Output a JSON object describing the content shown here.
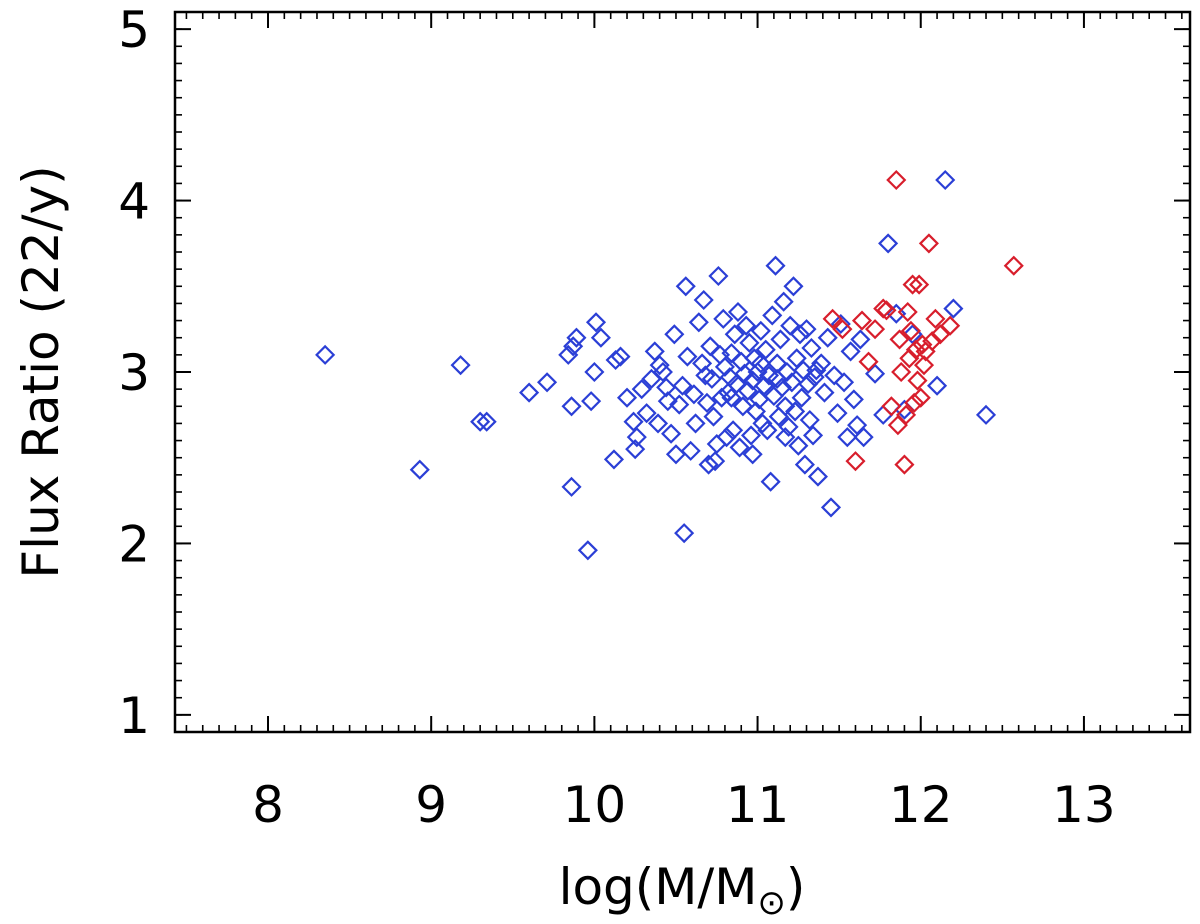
{
  "chart_data": {
    "type": "scatter",
    "title": "",
    "xlabel": "log(M/M",
    "xlabel_sub": "⊙",
    "xlabel_close": ")",
    "ylabel": "Flux Ratio (22/y)",
    "xlim": [
      7.43,
      13.65
    ],
    "ylim": [
      0.9,
      5.1
    ],
    "xticks": [
      8,
      9,
      10,
      11,
      12,
      13
    ],
    "yticks": [
      1,
      2,
      3,
      4,
      5
    ],
    "xtick_labels": [
      "8",
      "9",
      "10",
      "11",
      "12",
      "13"
    ],
    "ytick_labels": [
      "1",
      "2",
      "3",
      "4",
      "5"
    ],
    "x_minor_step": 0.1,
    "y_minor_step": 0.1,
    "marker": "diamond-open",
    "series": [
      {
        "name": "blue",
        "color": "#2b3fd6",
        "points": [
          [
            8.35,
            3.1
          ],
          [
            8.93,
            2.43
          ],
          [
            9.18,
            3.04
          ],
          [
            9.3,
            2.71
          ],
          [
            9.34,
            2.71
          ],
          [
            9.6,
            2.88
          ],
          [
            9.71,
            2.94
          ],
          [
            9.84,
            3.1
          ],
          [
            9.87,
            3.15
          ],
          [
            9.89,
            3.2
          ],
          [
            9.86,
            2.8
          ],
          [
            9.86,
            2.33
          ],
          [
            9.96,
            1.96
          ],
          [
            9.98,
            2.83
          ],
          [
            10.0,
            3.0
          ],
          [
            10.01,
            3.29
          ],
          [
            10.04,
            3.2
          ],
          [
            10.12,
            2.49
          ],
          [
            10.13,
            3.07
          ],
          [
            10.16,
            3.09
          ],
          [
            10.2,
            2.85
          ],
          [
            10.24,
            2.71
          ],
          [
            10.26,
            2.62
          ],
          [
            10.29,
            2.9
          ],
          [
            10.32,
            2.76
          ],
          [
            10.35,
            2.96
          ],
          [
            10.37,
            3.12
          ],
          [
            10.39,
            2.7
          ],
          [
            10.4,
            3.04
          ],
          [
            10.42,
            3.0
          ],
          [
            10.45,
            2.83
          ],
          [
            10.47,
            2.64
          ],
          [
            10.49,
            3.22
          ],
          [
            10.5,
            2.52
          ],
          [
            10.52,
            2.81
          ],
          [
            10.54,
            2.92
          ],
          [
            10.55,
            2.06
          ],
          [
            10.56,
            3.5
          ],
          [
            10.57,
            3.09
          ],
          [
            10.59,
            2.54
          ],
          [
            10.61,
            2.87
          ],
          [
            10.62,
            2.7
          ],
          [
            10.64,
            3.29
          ],
          [
            10.66,
            3.05
          ],
          [
            10.67,
            3.42
          ],
          [
            10.69,
            2.82
          ],
          [
            10.7,
            2.46
          ],
          [
            10.71,
            3.15
          ],
          [
            10.72,
            2.96
          ],
          [
            10.73,
            2.74
          ],
          [
            10.74,
            2.48
          ],
          [
            10.75,
            2.58
          ],
          [
            10.76,
            3.56
          ],
          [
            10.77,
            3.1
          ],
          [
            10.78,
            2.85
          ],
          [
            10.79,
            3.31
          ],
          [
            10.8,
            3.03
          ],
          [
            10.81,
            2.62
          ],
          [
            10.82,
            2.88
          ],
          [
            10.83,
            2.97
          ],
          [
            10.84,
            3.11
          ],
          [
            10.85,
            2.66
          ],
          [
            10.86,
            3.22
          ],
          [
            10.87,
            2.93
          ],
          [
            10.88,
            3.35
          ],
          [
            10.89,
            2.56
          ],
          [
            10.9,
            3.06
          ],
          [
            10.91,
            2.8
          ],
          [
            10.92,
            2.99
          ],
          [
            10.93,
            3.27
          ],
          [
            10.94,
            2.89
          ],
          [
            10.95,
            3.17
          ],
          [
            10.96,
            2.63
          ],
          [
            10.97,
            2.95
          ],
          [
            10.98,
            3.08
          ],
          [
            10.99,
            2.77
          ],
          [
            11.0,
            3.0
          ],
          [
            11.01,
            2.84
          ],
          [
            11.02,
            3.24
          ],
          [
            11.03,
            2.7
          ],
          [
            11.04,
            2.92
          ],
          [
            11.05,
            3.13
          ],
          [
            11.06,
            2.66
          ],
          [
            11.07,
            2.98
          ],
          [
            11.08,
            2.36
          ],
          [
            11.09,
            3.33
          ],
          [
            11.1,
            2.86
          ],
          [
            11.11,
            3.62
          ],
          [
            11.12,
            3.05
          ],
          [
            11.13,
            2.74
          ],
          [
            11.14,
            3.19
          ],
          [
            11.15,
            2.91
          ],
          [
            11.16,
            3.41
          ],
          [
            11.17,
            2.8
          ],
          [
            11.18,
            3.0
          ],
          [
            11.19,
            2.68
          ],
          [
            11.2,
            3.27
          ],
          [
            11.21,
            2.94
          ],
          [
            11.22,
            3.5
          ],
          [
            11.23,
            2.77
          ],
          [
            11.24,
            3.08
          ],
          [
            11.25,
            2.57
          ],
          [
            11.26,
            3.22
          ],
          [
            11.27,
            2.85
          ],
          [
            11.28,
            3.01
          ],
          [
            11.29,
            2.46
          ],
          [
            11.3,
            3.25
          ],
          [
            11.31,
            2.93
          ],
          [
            11.32,
            2.72
          ],
          [
            11.33,
            3.14
          ],
          [
            11.34,
            2.63
          ],
          [
            11.35,
            2.97
          ],
          [
            11.37,
            2.39
          ],
          [
            11.39,
            3.05
          ],
          [
            11.41,
            2.88
          ],
          [
            11.43,
            3.2
          ],
          [
            11.45,
            2.21
          ],
          [
            11.47,
            2.98
          ],
          [
            11.49,
            2.76
          ],
          [
            11.51,
            3.28
          ],
          [
            11.53,
            2.94
          ],
          [
            11.55,
            2.62
          ],
          [
            11.57,
            3.12
          ],
          [
            11.59,
            2.84
          ],
          [
            11.61,
            2.69
          ],
          [
            11.63,
            3.19
          ],
          [
            11.65,
            2.62
          ],
          [
            11.72,
            2.99
          ],
          [
            11.77,
            2.75
          ],
          [
            11.8,
            3.75
          ],
          [
            11.85,
            3.34
          ],
          [
            11.9,
            2.78
          ],
          [
            11.95,
            3.22
          ],
          [
            12.1,
            2.92
          ],
          [
            12.15,
            4.12
          ],
          [
            12.2,
            3.37
          ],
          [
            12.4,
            2.75
          ],
          [
            10.25,
            2.55
          ],
          [
            10.68,
            2.98
          ],
          [
            10.97,
            2.52
          ],
          [
            11.12,
            2.96
          ],
          [
            11.36,
            3.01
          ],
          [
            10.44,
            2.91
          ],
          [
            10.84,
            2.85
          ],
          [
            11.17,
            2.62
          ],
          [
            11.02,
            3.05
          ]
        ]
      },
      {
        "name": "red",
        "color": "#d81e2c",
        "points": [
          [
            11.46,
            3.31
          ],
          [
            11.52,
            3.25
          ],
          [
            11.6,
            2.48
          ],
          [
            11.64,
            3.3
          ],
          [
            11.68,
            3.06
          ],
          [
            11.72,
            3.25
          ],
          [
            11.77,
            3.37
          ],
          [
            11.79,
            3.36
          ],
          [
            11.82,
            2.8
          ],
          [
            11.85,
            4.12
          ],
          [
            11.86,
            2.69
          ],
          [
            11.87,
            3.19
          ],
          [
            11.88,
            3.0
          ],
          [
            11.9,
            2.46
          ],
          [
            11.91,
            2.75
          ],
          [
            11.92,
            3.35
          ],
          [
            11.93,
            3.08
          ],
          [
            11.94,
            3.24
          ],
          [
            11.95,
            3.51
          ],
          [
            11.96,
            2.82
          ],
          [
            11.97,
            3.13
          ],
          [
            11.98,
            2.95
          ],
          [
            11.99,
            3.51
          ],
          [
            12.0,
            2.85
          ],
          [
            12.01,
            3.16
          ],
          [
            12.02,
            3.04
          ],
          [
            12.03,
            3.12
          ],
          [
            12.05,
            3.75
          ],
          [
            12.07,
            3.18
          ],
          [
            12.09,
            3.31
          ],
          [
            12.12,
            3.22
          ],
          [
            12.18,
            3.27
          ],
          [
            12.57,
            3.62
          ]
        ]
      }
    ]
  }
}
